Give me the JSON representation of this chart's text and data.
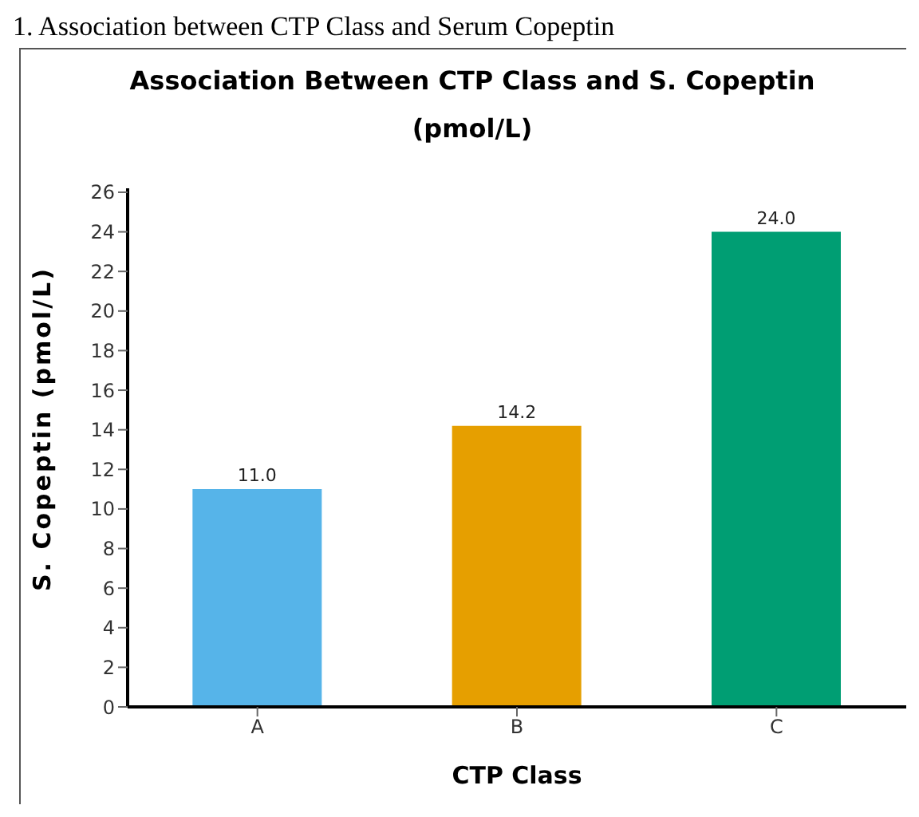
{
  "chart_data": {
    "type": "bar",
    "title": "Association Between CTP Class and S. Copeptin\n(pmol/L)",
    "xlabel": "CTP Class",
    "ylabel": "S. Copeptin (pmol/L)",
    "annotations": [
      "1. Association between CTP Class and Serum Copeptin"
    ],
    "categories": [
      "A",
      "B",
      "C"
    ],
    "values": [
      11.0,
      14.2,
      24.0
    ],
    "colors": [
      "#56b4e9",
      "#e69f00",
      "#009e73"
    ],
    "ylim": [
      0,
      26.2
    ],
    "yticks": [
      0,
      2,
      4,
      6,
      8,
      10,
      12,
      14,
      16,
      18,
      20,
      22,
      24,
      26
    ],
    "value_labels": [
      "11.0",
      "14.2",
      "24.0"
    ]
  }
}
